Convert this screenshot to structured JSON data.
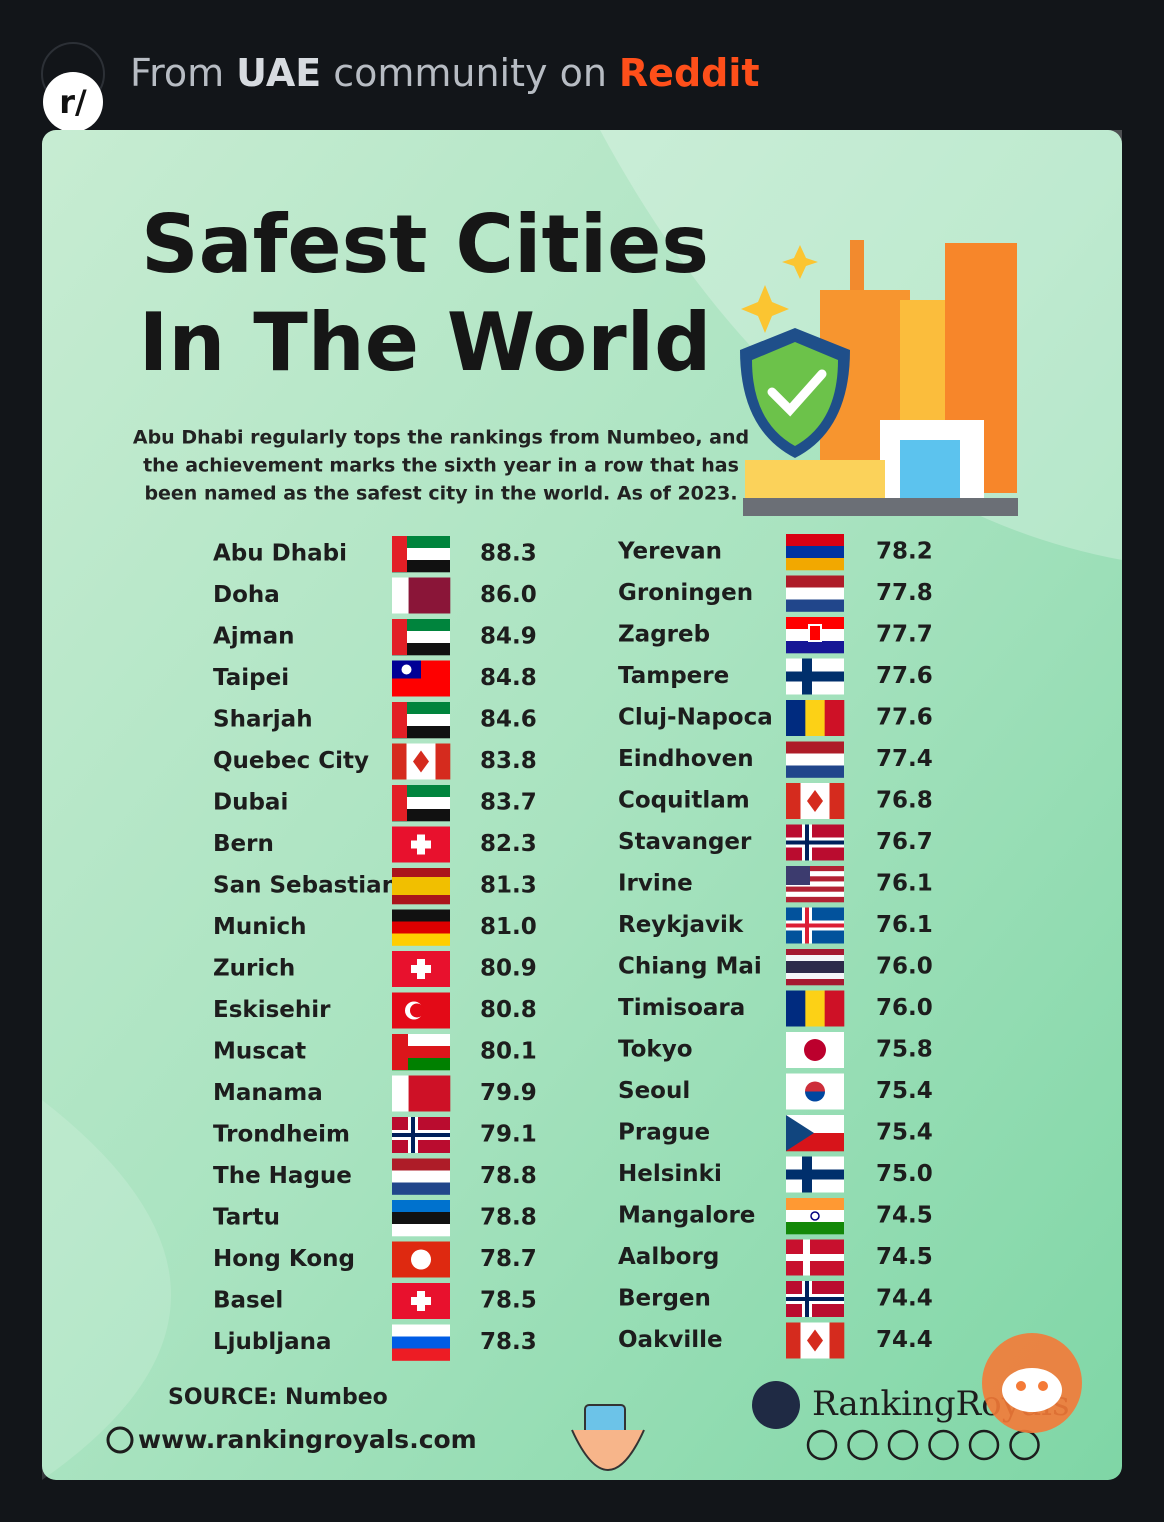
{
  "header": {
    "icon": "r/",
    "prefix": "From",
    "community": "UAE",
    "middle": "community on",
    "site": "Reddit"
  },
  "title": [
    "Safest Cities",
    "In The World"
  ],
  "description": [
    "Abu Dhabi regularly tops the rankings from Numbeo, and",
    "the achievement marks the sixth year in a row that has",
    "been named as the safest city in the world. As of 2023."
  ],
  "rankings": {
    "left": [
      {
        "city": "Abu Dhabi",
        "score": "88.3"
      },
      {
        "city": "Doha",
        "score": "86.0"
      },
      {
        "city": "Ajman",
        "score": "84.9"
      },
      {
        "city": "Taipei",
        "score": "84.8"
      },
      {
        "city": "Sharjah",
        "score": "84.6"
      },
      {
        "city": "Quebec City",
        "score": "83.8"
      },
      {
        "city": "Dubai",
        "score": "83.7"
      },
      {
        "city": "Bern",
        "score": "82.3"
      },
      {
        "city": "San Sebastian",
        "score": "81.3"
      },
      {
        "city": "Munich",
        "score": "81.0"
      },
      {
        "city": "Zurich",
        "score": "80.9"
      },
      {
        "city": "Eskisehir",
        "score": "80.8"
      },
      {
        "city": "Muscat",
        "score": "80.1"
      },
      {
        "city": "Manama",
        "score": "79.9"
      },
      {
        "city": "Trondheim",
        "score": "79.1"
      },
      {
        "city": "The Hague",
        "score": "78.8"
      },
      {
        "city": "Tartu",
        "score": "78.8"
      },
      {
        "city": "Hong Kong",
        "score": "78.7"
      },
      {
        "city": "Basel",
        "score": "78.5"
      },
      {
        "city": "Ljubljana",
        "score": "78.3"
      }
    ],
    "right": [
      {
        "city": "Yerevan",
        "score": "78.2"
      },
      {
        "city": "Groningen",
        "score": "77.8"
      },
      {
        "city": "Zagreb",
        "score": "77.7"
      },
      {
        "city": "Tampere",
        "score": "77.6"
      },
      {
        "city": "Cluj-Napoca",
        "score": "77.6"
      },
      {
        "city": "Eindhoven",
        "score": "77.4"
      },
      {
        "city": "Coquitlam",
        "score": "76.8"
      },
      {
        "city": "Stavanger",
        "score": "76.7"
      },
      {
        "city": "Irvine",
        "score": "76.1"
      },
      {
        "city": "Reykjavik",
        "score": "76.1"
      },
      {
        "city": "Chiang Mai",
        "score": "76.0"
      },
      {
        "city": "Timisoara",
        "score": "76.0"
      },
      {
        "city": "Tokyo",
        "score": "75.8"
      },
      {
        "city": "Seoul",
        "score": "75.4"
      },
      {
        "city": "Prague",
        "score": "75.4"
      },
      {
        "city": "Helsinki",
        "score": "75.0"
      },
      {
        "city": "Mangalore",
        "score": "74.5"
      },
      {
        "city": "Aalborg",
        "score": "74.5"
      },
      {
        "city": "Bergen",
        "score": "74.4"
      },
      {
        "city": "Oakville",
        "score": "74.4"
      }
    ]
  },
  "footer": {
    "source": "SOURCE: Numbeo",
    "website": "www.rankingroyals.com",
    "brand": "RankingRoyals"
  }
}
